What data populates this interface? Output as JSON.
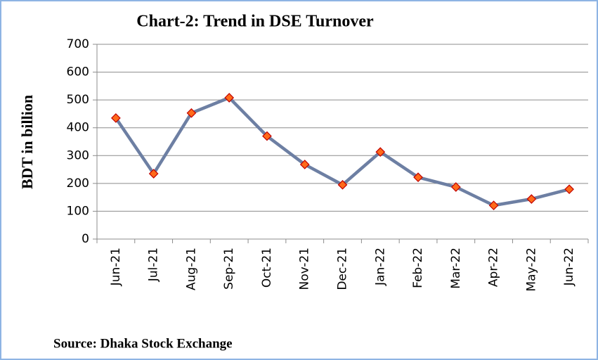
{
  "chart_data": {
    "type": "line",
    "title": "Chart-2: Trend in DSE Turnover",
    "y_label": "BDT in billion",
    "source": "Source: Dhaka Stock Exchange",
    "categories": [
      "Jun-21",
      "Jul-21",
      "Aug-21",
      "Sep-21",
      "Oct-21",
      "Nov-21",
      "Dec-21",
      "Jan-22",
      "Feb-22",
      "Mar-22",
      "Apr-22",
      "May-22",
      "Jun-22"
    ],
    "series": [
      {
        "name": "DSE Turnover",
        "color": "#6d7fa3",
        "marker_color": "#ff6a1a",
        "values": [
          435,
          235,
          453,
          508,
          370,
          268,
          195,
          313,
          222,
          187,
          121,
          144,
          179
        ]
      }
    ],
    "ylim": [
      0,
      700
    ],
    "yticks": [
      0,
      100,
      200,
      300,
      400,
      500,
      600,
      700
    ],
    "grid": true
  }
}
